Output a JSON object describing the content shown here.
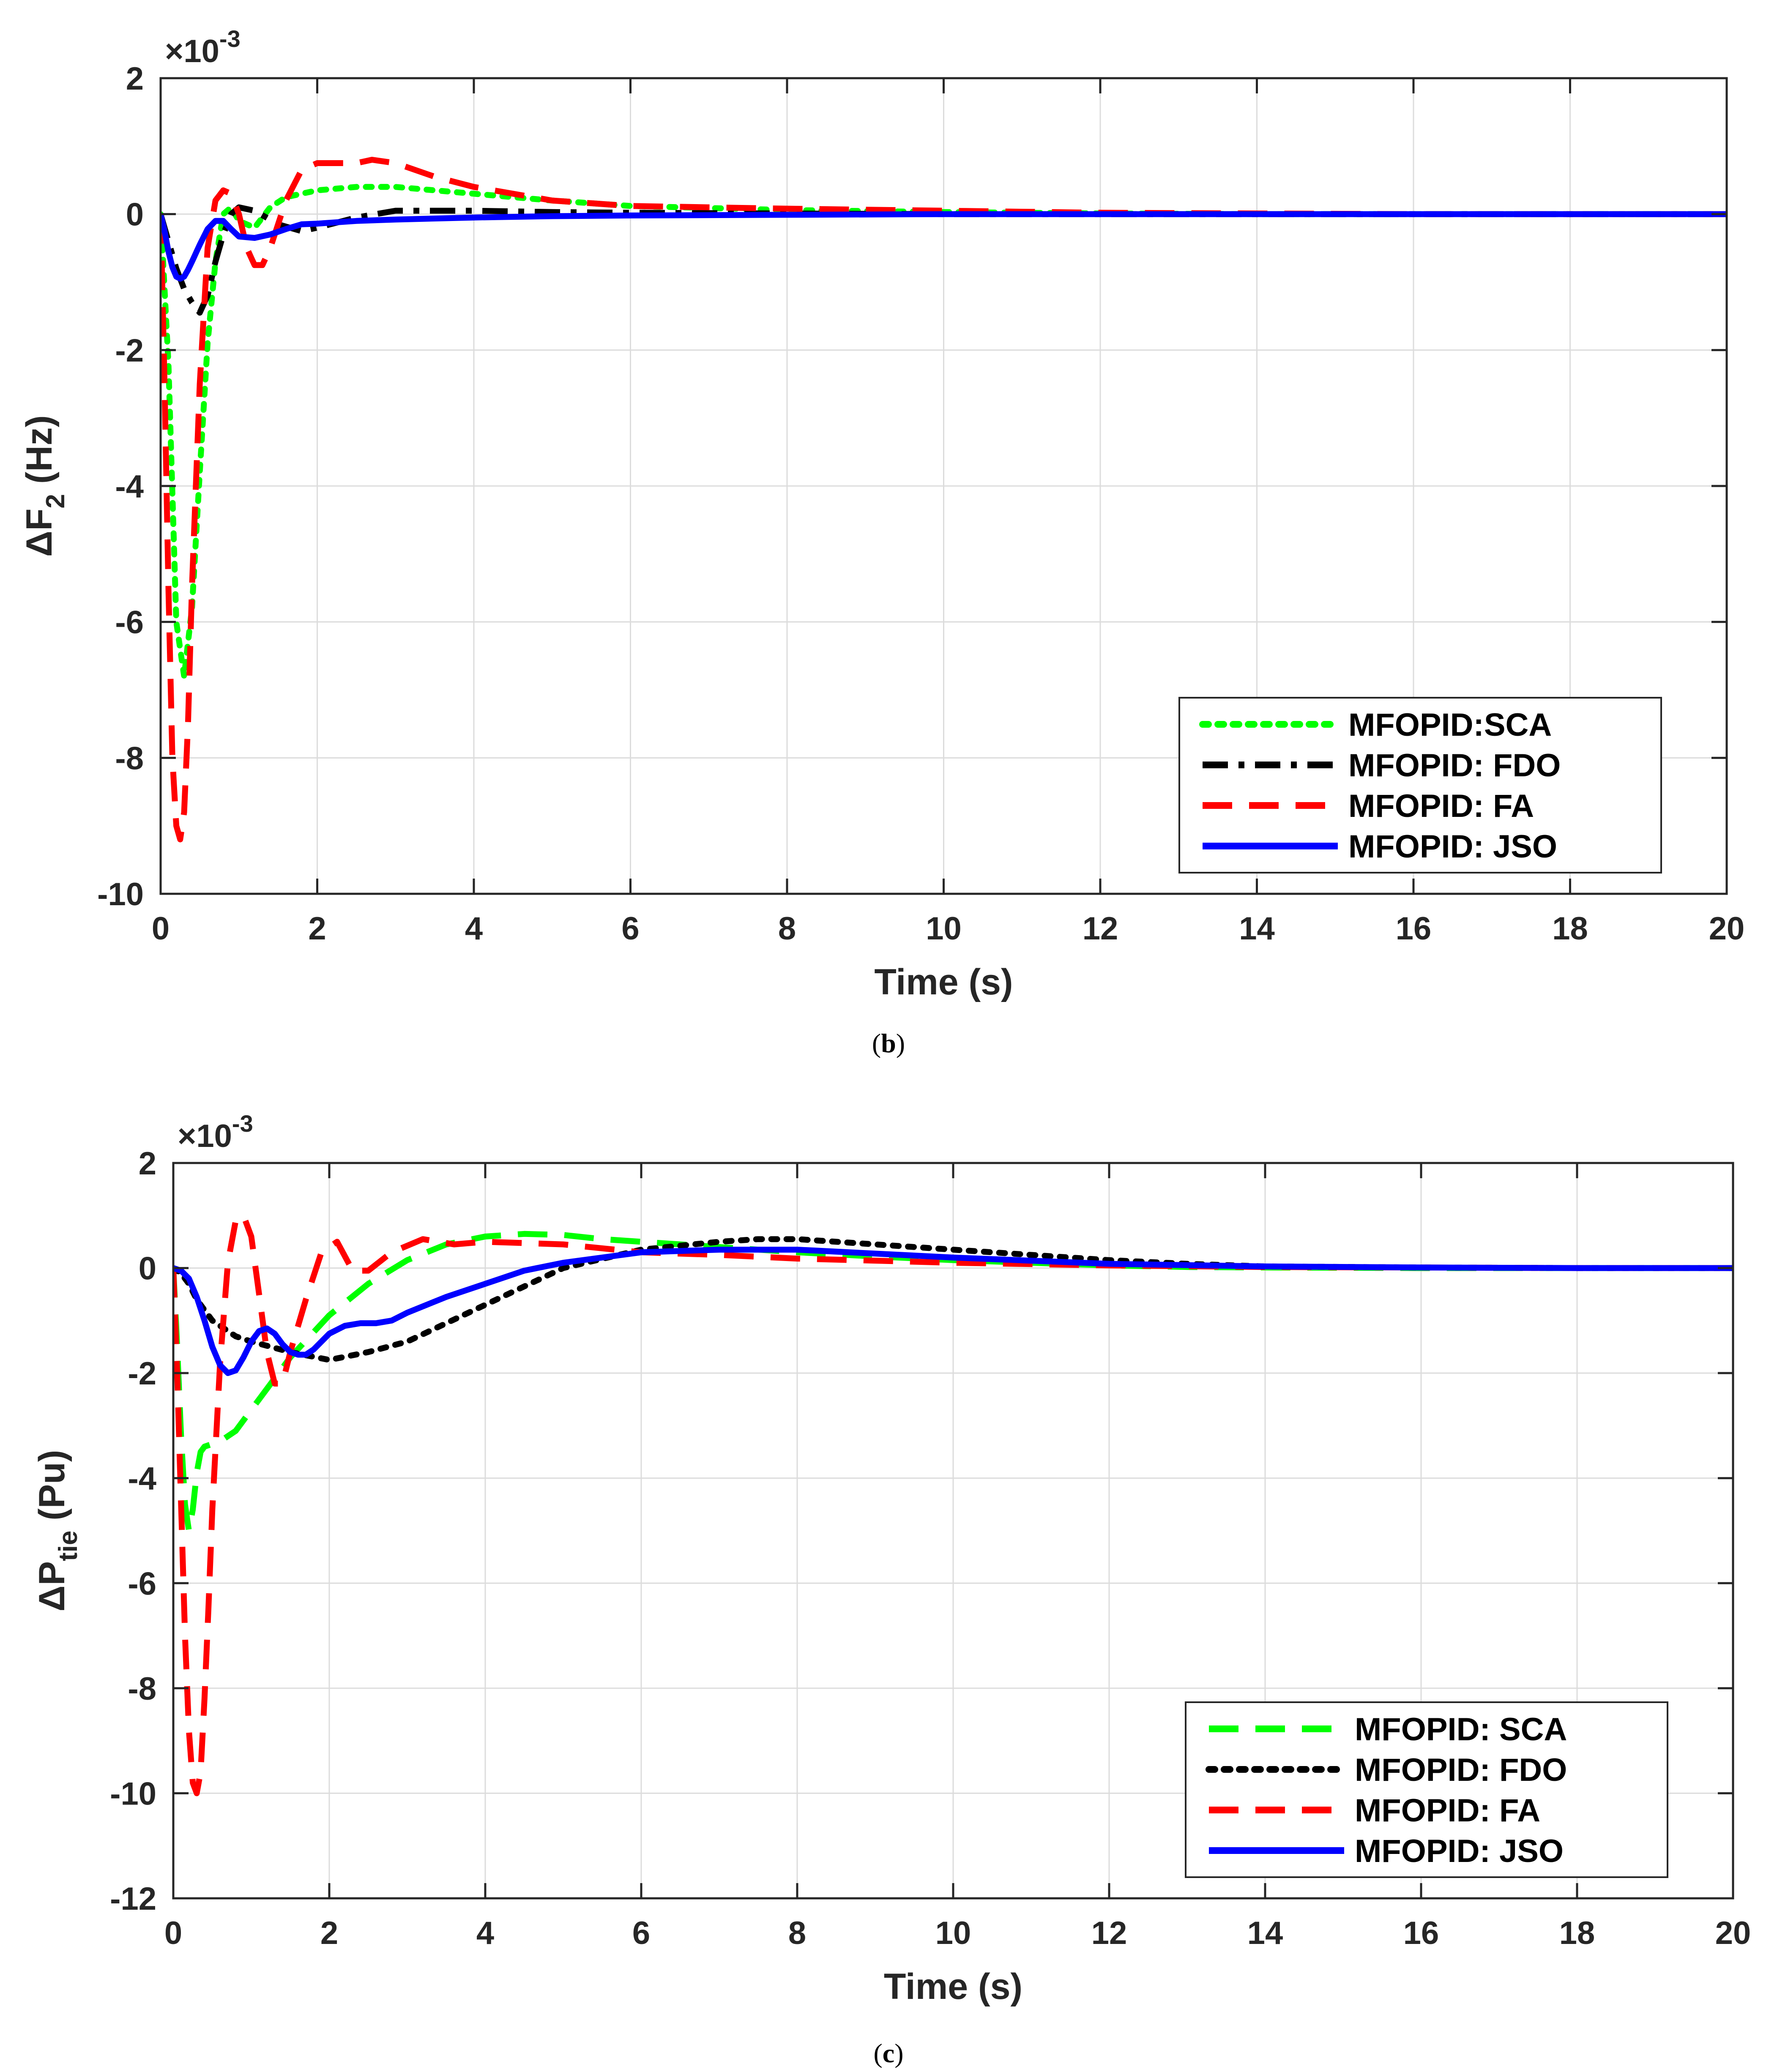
{
  "chart_data": [
    {
      "id": "b",
      "type": "line",
      "caption": "b",
      "xlabel": "Time (s)",
      "ylabel_main": "ΔF",
      "ylabel_sub": "2",
      "ylabel_unit": " (Hz)",
      "exponent_prefix": "×10",
      "exponent_power": "-3",
      "xlim": [
        0,
        20
      ],
      "ylim": [
        -10,
        2
      ],
      "xticks": [
        0,
        2,
        4,
        6,
        8,
        10,
        12,
        14,
        16,
        18,
        20
      ],
      "yticks": [
        2,
        0,
        -2,
        -4,
        -6,
        -8,
        -10
      ],
      "grid": true,
      "legend_position": "bottom-right",
      "series": [
        {
          "name": "MFOPID:SCA",
          "color": "#00ff00",
          "style": "dotted",
          "x": [
            0,
            0.1,
            0.2,
            0.3,
            0.4,
            0.5,
            0.6,
            0.7,
            0.8,
            0.9,
            1.0,
            1.2,
            1.4,
            1.6,
            1.8,
            2.0,
            2.5,
            3.0,
            3.5,
            4.0,
            5.0,
            6.0,
            8.0,
            10,
            12,
            14,
            16,
            18,
            20
          ],
          "y": [
            0,
            -2.2,
            -6.0,
            -6.8,
            -5.8,
            -3.8,
            -1.9,
            -0.7,
            0.0,
            0.1,
            -0.1,
            -0.2,
            0.1,
            0.25,
            0.3,
            0.35,
            0.4,
            0.4,
            0.35,
            0.3,
            0.2,
            0.12,
            0.06,
            0.03,
            0.01,
            0,
            0,
            0,
            0
          ]
        },
        {
          "name": "MFOPID: FDO",
          "color": "#000000",
          "style": "dashdot",
          "x": [
            0,
            0.1,
            0.2,
            0.3,
            0.4,
            0.5,
            0.6,
            0.7,
            0.8,
            0.9,
            1.0,
            1.2,
            1.5,
            1.8,
            2.0,
            2.5,
            3.0,
            3.5,
            4.0,
            5.0,
            6.0,
            8.0,
            10,
            12,
            14,
            16,
            18,
            20
          ],
          "y": [
            0,
            -0.4,
            -0.8,
            -1.1,
            -1.3,
            -1.45,
            -1.2,
            -0.7,
            -0.3,
            0.0,
            0.1,
            0.05,
            -0.15,
            -0.25,
            -0.2,
            -0.05,
            0.05,
            0.05,
            0.05,
            0.03,
            0.02,
            0.01,
            0,
            0,
            0,
            0,
            0,
            0
          ]
        },
        {
          "name": "MFOPID: FA",
          "color": "#ff0000",
          "style": "dashed",
          "x": [
            0,
            0.05,
            0.1,
            0.15,
            0.2,
            0.25,
            0.3,
            0.35,
            0.4,
            0.5,
            0.6,
            0.7,
            0.8,
            0.9,
            1.0,
            1.1,
            1.2,
            1.3,
            1.4,
            1.6,
            1.8,
            2.0,
            2.5,
            2.7,
            3.0,
            3.5,
            4.0,
            5.0,
            6.0,
            7.0,
            8.0,
            10,
            12,
            14,
            16,
            18,
            20
          ],
          "y": [
            0,
            -2.5,
            -5.5,
            -8.0,
            -9.0,
            -9.2,
            -8.8,
            -7.5,
            -5.5,
            -2.5,
            -0.5,
            0.2,
            0.35,
            0.3,
            0.0,
            -0.5,
            -0.75,
            -0.75,
            -0.5,
            0.2,
            0.65,
            0.75,
            0.75,
            0.8,
            0.75,
            0.55,
            0.4,
            0.2,
            0.12,
            0.1,
            0.08,
            0.05,
            0.02,
            0.01,
            0,
            0,
            0
          ]
        },
        {
          "name": "MFOPID: JSO",
          "color": "#0000ff",
          "style": "solid",
          "x": [
            0,
            0.05,
            0.1,
            0.15,
            0.2,
            0.25,
            0.3,
            0.35,
            0.4,
            0.5,
            0.6,
            0.7,
            0.8,
            0.9,
            1.0,
            1.2,
            1.4,
            1.6,
            1.8,
            2.0,
            2.5,
            3.0,
            4.0,
            5.0,
            6.0,
            8.0,
            10,
            14,
            20
          ],
          "y": [
            0,
            -0.25,
            -0.55,
            -0.78,
            -0.92,
            -0.95,
            -0.92,
            -0.82,
            -0.7,
            -0.45,
            -0.22,
            -0.1,
            -0.1,
            -0.22,
            -0.33,
            -0.35,
            -0.3,
            -0.22,
            -0.15,
            -0.14,
            -0.1,
            -0.08,
            -0.05,
            -0.03,
            -0.02,
            -0.01,
            0,
            0,
            0
          ]
        }
      ]
    },
    {
      "id": "c",
      "type": "line",
      "caption": "c",
      "xlabel": "Time (s)",
      "ylabel_main": "ΔP",
      "ylabel_sub": "tie",
      "ylabel_unit": " (Pu)",
      "exponent_prefix": "×10",
      "exponent_power": "-3",
      "xlim": [
        0,
        20
      ],
      "ylim": [
        -12,
        2
      ],
      "xticks": [
        0,
        2,
        4,
        6,
        8,
        10,
        12,
        14,
        16,
        18,
        20
      ],
      "yticks": [
        2,
        0,
        -2,
        -4,
        -6,
        -8,
        -10,
        -12
      ],
      "grid": true,
      "legend_position": "bottom-right",
      "series": [
        {
          "name": "MFOPID: SCA",
          "color": "#00ff00",
          "style": "dashed",
          "x": [
            0,
            0.05,
            0.1,
            0.15,
            0.2,
            0.25,
            0.3,
            0.35,
            0.4,
            0.5,
            0.6,
            0.8,
            1.0,
            1.5,
            2.0,
            2.5,
            3.0,
            3.5,
            4.0,
            4.5,
            5.0,
            5.5,
            6.0,
            7.0,
            8.0,
            9.0,
            10,
            11,
            12,
            13,
            14,
            16,
            18,
            20
          ],
          "y": [
            0,
            -1.5,
            -3.2,
            -4.5,
            -5.0,
            -4.6,
            -3.9,
            -3.5,
            -3.4,
            -3.35,
            -3.3,
            -3.1,
            -2.7,
            -1.7,
            -0.9,
            -0.3,
            0.15,
            0.45,
            0.6,
            0.65,
            0.63,
            0.55,
            0.5,
            0.4,
            0.3,
            0.22,
            0.15,
            0.1,
            0.05,
            0.02,
            0.01,
            0,
            0,
            0
          ]
        },
        {
          "name": "MFOPID: FDO",
          "color": "#000000",
          "style": "dotted",
          "x": [
            0,
            0.1,
            0.2,
            0.3,
            0.5,
            0.8,
            1.0,
            1.5,
            2.0,
            2.5,
            3.0,
            3.5,
            4.0,
            5.0,
            6.0,
            7.0,
            7.5,
            8.0,
            9.0,
            10,
            11,
            12,
            13,
            14,
            16,
            18,
            20
          ],
          "y": [
            0,
            -0.1,
            -0.3,
            -0.6,
            -1.0,
            -1.3,
            -1.4,
            -1.6,
            -1.75,
            -1.6,
            -1.4,
            -1.05,
            -0.7,
            0.0,
            0.35,
            0.5,
            0.55,
            0.55,
            0.45,
            0.35,
            0.25,
            0.15,
            0.08,
            0.03,
            0.01,
            0,
            0
          ]
        },
        {
          "name": "MFOPID: FA",
          "color": "#ff0000",
          "style": "dashed",
          "x": [
            0,
            0.05,
            0.1,
            0.15,
            0.2,
            0.25,
            0.3,
            0.35,
            0.4,
            0.45,
            0.5,
            0.6,
            0.7,
            0.8,
            0.9,
            1.0,
            1.1,
            1.2,
            1.3,
            1.4,
            1.5,
            1.7,
            1.9,
            2.1,
            2.3,
            2.5,
            2.8,
            3.2,
            3.6,
            4.0,
            5.0,
            6.0,
            7.0,
            8.0,
            10,
            12,
            14,
            16,
            18,
            20
          ],
          "y": [
            0,
            -2.0,
            -4.5,
            -7.0,
            -8.8,
            -9.8,
            -10.0,
            -9.6,
            -8.2,
            -6.5,
            -4.6,
            -1.8,
            0.1,
            0.9,
            1.0,
            0.6,
            -0.5,
            -1.6,
            -2.2,
            -2.2,
            -1.6,
            -0.6,
            0.3,
            0.5,
            -0.05,
            -0.05,
            0.3,
            0.55,
            0.45,
            0.5,
            0.45,
            0.3,
            0.25,
            0.18,
            0.1,
            0.05,
            0.02,
            0.01,
            0,
            0
          ]
        },
        {
          "name": "MFOPID: JSO",
          "color": "#0000ff",
          "style": "solid",
          "x": [
            0,
            0.1,
            0.2,
            0.3,
            0.4,
            0.5,
            0.6,
            0.7,
            0.8,
            0.9,
            1.0,
            1.1,
            1.2,
            1.3,
            1.4,
            1.5,
            1.6,
            1.7,
            1.8,
            1.9,
            2.0,
            2.2,
            2.4,
            2.6,
            2.8,
            3.0,
            3.5,
            4.0,
            4.5,
            5.0,
            6.0,
            7.0,
            8.0,
            10,
            12,
            14,
            16,
            18,
            20
          ],
          "y": [
            0,
            -0.05,
            -0.2,
            -0.55,
            -1.0,
            -1.5,
            -1.85,
            -2.0,
            -1.95,
            -1.7,
            -1.4,
            -1.2,
            -1.15,
            -1.25,
            -1.45,
            -1.6,
            -1.65,
            -1.65,
            -1.55,
            -1.4,
            -1.25,
            -1.1,
            -1.05,
            -1.05,
            -1.0,
            -0.85,
            -0.55,
            -0.3,
            -0.05,
            0.1,
            0.3,
            0.35,
            0.35,
            0.2,
            0.08,
            0.03,
            0.01,
            0,
            0
          ]
        }
      ]
    }
  ]
}
